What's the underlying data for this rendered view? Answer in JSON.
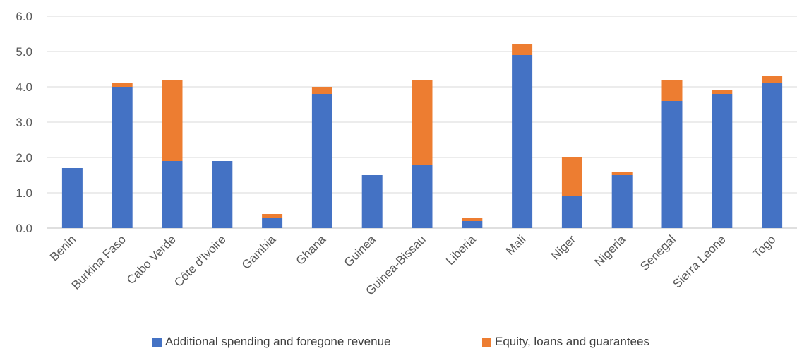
{
  "chart_data": {
    "type": "bar",
    "stacked": true,
    "categories": [
      "Benin",
      "Burkina Faso",
      "Cabo Verde",
      "Côte d'Ivoire",
      "Gambia",
      "Ghana",
      "Guinea",
      "Guinea-Bissau",
      "Liberia",
      "Mali",
      "Niger",
      "Nigeria",
      "Senegal",
      "Sierra Leone",
      "Togo"
    ],
    "series": [
      {
        "name": "Additional spending and foregone revenue",
        "color": "#4472C4",
        "values": [
          1.7,
          4.0,
          1.9,
          1.9,
          0.3,
          3.8,
          1.5,
          1.8,
          0.2,
          4.9,
          0.9,
          1.5,
          3.6,
          3.8,
          4.1
        ]
      },
      {
        "name": "Equity, loans and guarantees",
        "color": "#ED7D31",
        "values": [
          0.0,
          0.1,
          2.3,
          0.0,
          0.1,
          0.2,
          0.0,
          2.4,
          0.1,
          0.3,
          1.1,
          0.1,
          0.6,
          0.1,
          0.2
        ]
      }
    ],
    "y_ticks": [
      "0.0",
      "1.0",
      "2.0",
      "3.0",
      "4.0",
      "5.0",
      "6.0"
    ],
    "ylim": [
      0,
      6
    ],
    "grid": true,
    "legend_position": "bottom"
  }
}
